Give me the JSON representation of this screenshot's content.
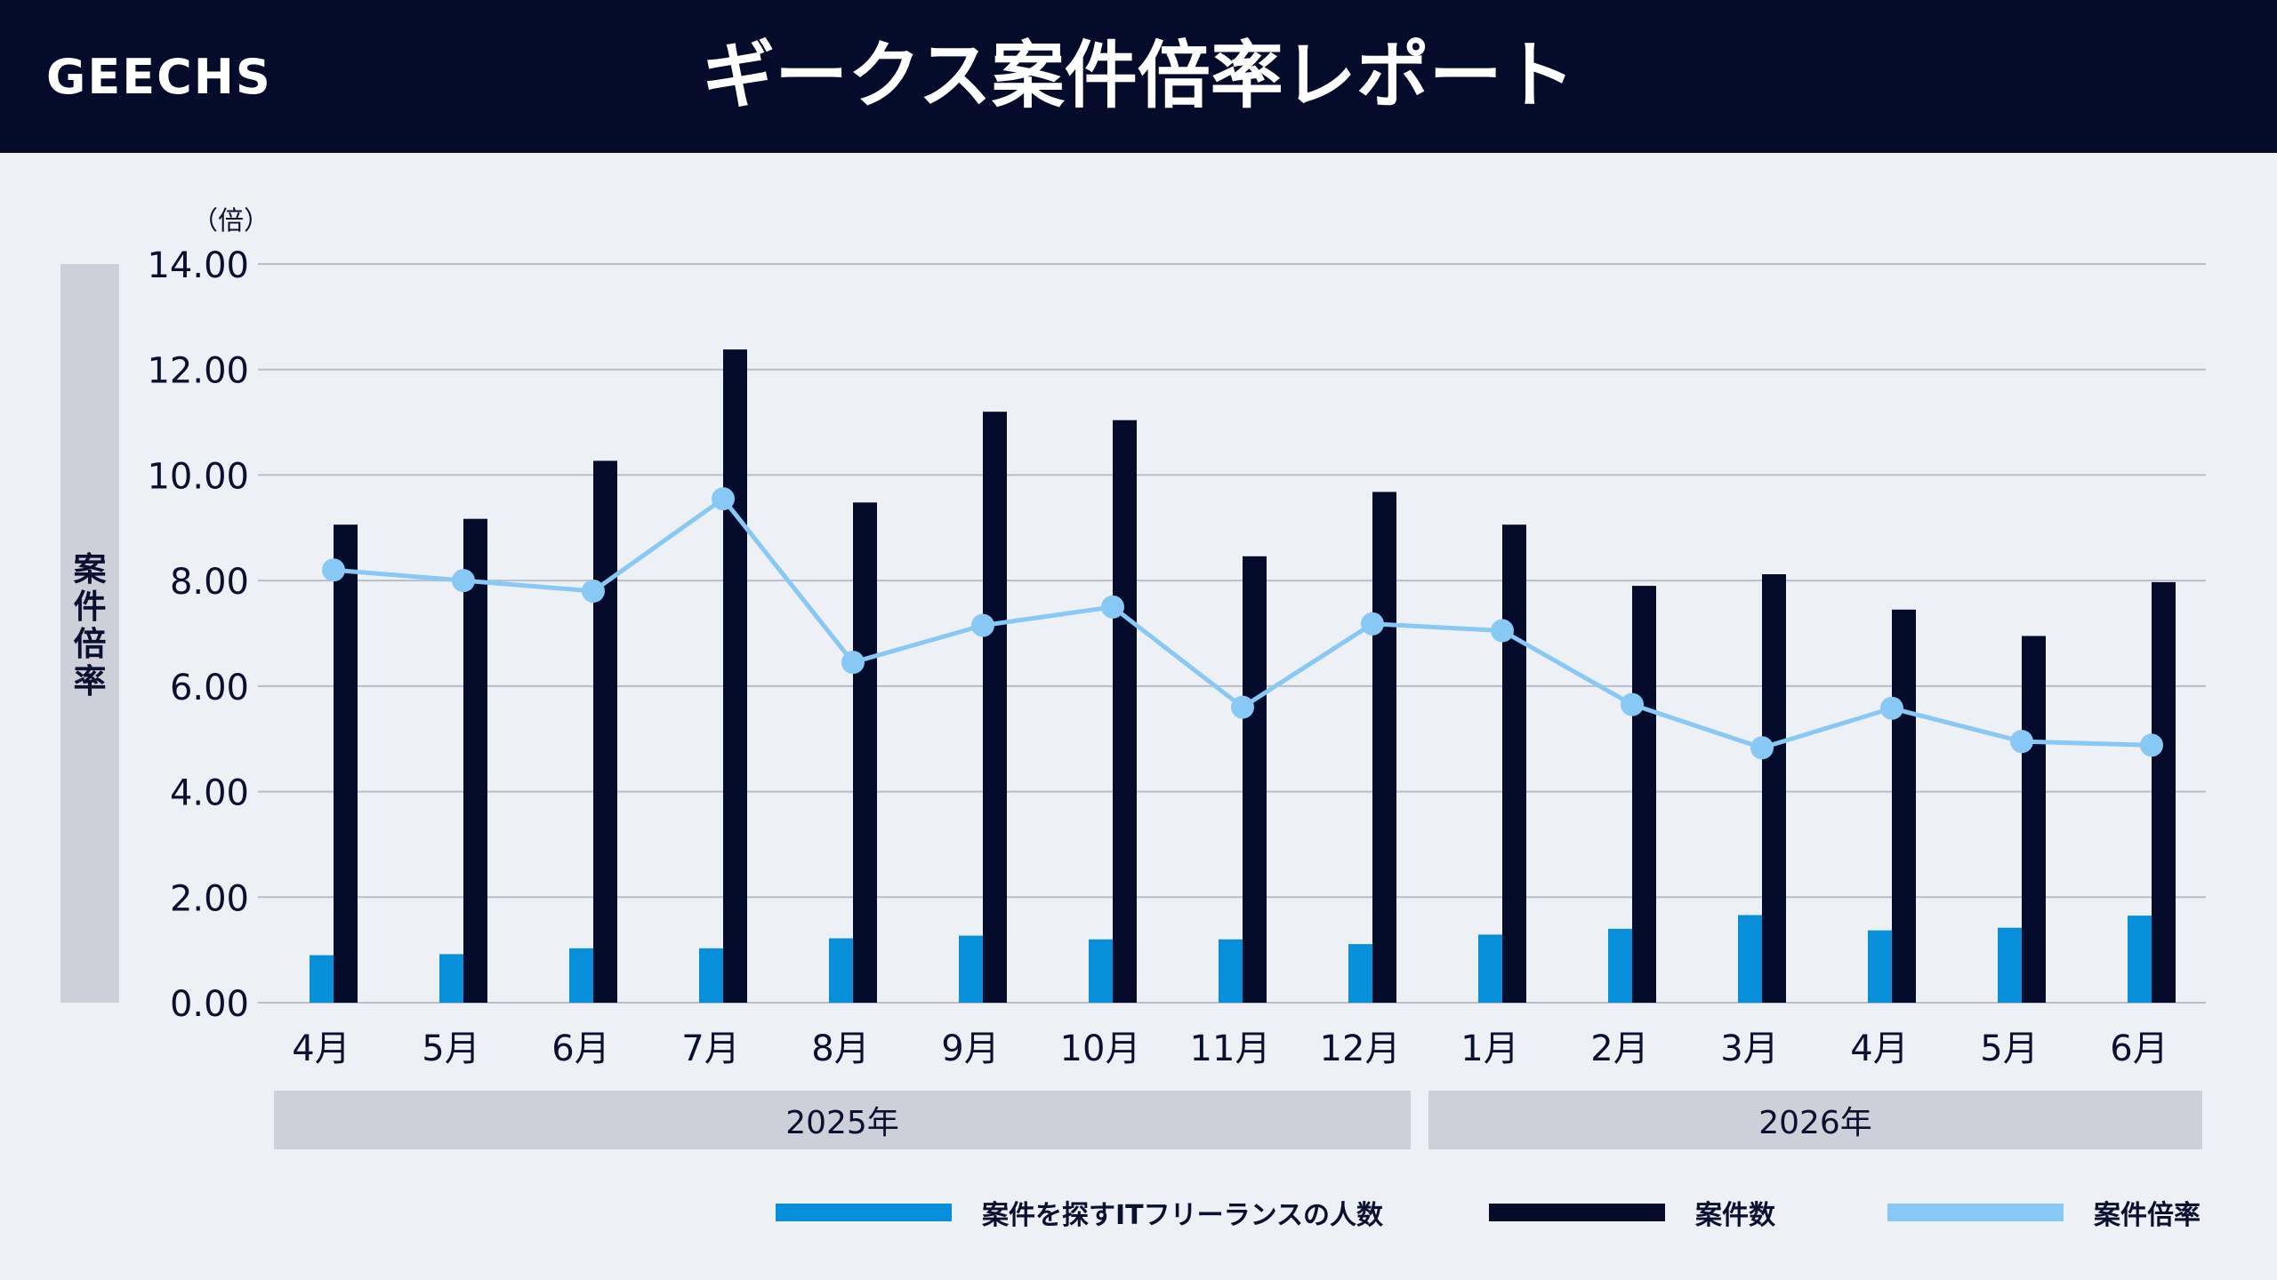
{
  "header": {
    "brand": "GEECHS",
    "title": "ギークス案件倍率レポート"
  },
  "colors": {
    "header_bg": "#050c2b",
    "engineers": "#0790d9",
    "projects": "#050c2b",
    "ratio": "#87c8f5",
    "grid": "#b9bec8",
    "background": "#edf0f5"
  },
  "chart_data": {
    "type": "bar",
    "y_axis_label": "案件倍率",
    "y_unit": "（倍）",
    "ylim": [
      0,
      14
    ],
    "y_ticks": [
      "0.00",
      "2.00",
      "4.00",
      "6.00",
      "8.00",
      "10.00",
      "12.00",
      "14.00"
    ],
    "grid": true,
    "categories": [
      "4月",
      "5月",
      "6月",
      "7月",
      "8月",
      "9月",
      "10月",
      "11月",
      "12月",
      "1月",
      "2月",
      "3月",
      "4月",
      "5月",
      "6月"
    ],
    "year_groups": [
      {
        "label": "2025年",
        "count": 9
      },
      {
        "label": "2026年",
        "count": 6
      }
    ],
    "series": [
      {
        "name": "案件を探すITフリーランスの人数",
        "type": "bar",
        "values": [
          0.9,
          0.92,
          1.03,
          1.03,
          1.22,
          1.27,
          1.2,
          1.2,
          1.11,
          1.29,
          1.4,
          1.66,
          1.37,
          1.42,
          1.65
        ]
      },
      {
        "name": "案件数",
        "type": "bar",
        "values": [
          9.06,
          9.17,
          10.27,
          12.38,
          9.48,
          11.2,
          11.04,
          8.46,
          9.68,
          9.06,
          7.9,
          8.12,
          7.45,
          6.95,
          7.97
        ]
      },
      {
        "name": "案件倍率",
        "type": "line",
        "values": [
          8.2,
          8.0,
          7.8,
          9.55,
          6.45,
          7.15,
          7.5,
          5.6,
          7.18,
          7.05,
          5.65,
          4.83,
          5.58,
          4.95,
          4.88
        ]
      }
    ],
    "legend_position": "bottom-right"
  }
}
